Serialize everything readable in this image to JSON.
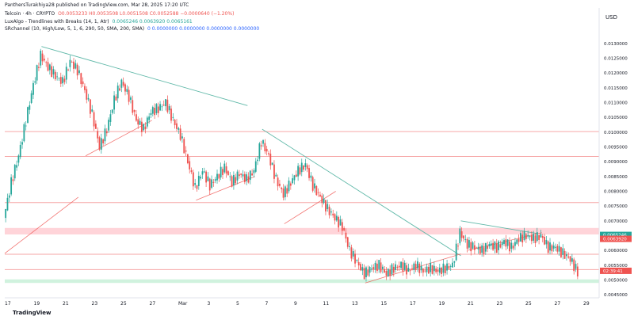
{
  "header": {
    "publisher": "PanthersTurakhiya28 published on TradingView.com, Mar 28, 2025 17:20 UTC",
    "symbol_line": "Telcoin · 4h · CRYPTO",
    "ohlc": "O0.0053233 H0.0053508 L0.0051508 C0.0052588 −0.0000640 (−1.20%)",
    "indicator1": "LuxAlgo - Trendlines with Breaks (14, 1, Atr)",
    "indicator1_values": "0.0065246 0.0063920 0.0065161",
    "indicator2": "SRchannel (10, High/Low, 5, 1, 6, 290, 50, SMA, 200, SMA)",
    "indicator2_values": "0 0.0000000 0.0000000 0.0000000 0.0000000"
  },
  "currency": "USD",
  "logo_text": "TradingView",
  "colors": {
    "up": "#26a69a",
    "down": "#ef5350",
    "zone_red": "#ffcdd2",
    "zone_green": "#c8f0d8",
    "sr_line": "#f6a6a6",
    "trendline": "#5fb8a8"
  },
  "chart_data": {
    "type": "candlestick",
    "symbol": "Telcoin",
    "timeframe": "4h",
    "ylim": [
      0.00445,
      0.0134
    ],
    "y_ticks": [
      "0.0130000",
      "0.0125000",
      "0.0120000",
      "0.0115000",
      "0.0110000",
      "0.0105000",
      "0.0100000",
      "0.0095000",
      "0.0090000",
      "0.0085000",
      "0.0080000",
      "0.0075000",
      "0.0070000",
      "0.0065000",
      "0.0060000",
      "0.0055000",
      "0.0050000",
      "0.0045000"
    ],
    "x_ticks": [
      "17",
      "19",
      "21",
      "23",
      "25",
      "27",
      "Mar",
      "3",
      "5",
      "7",
      "9",
      "11",
      "13",
      "15",
      "17",
      "19",
      "21",
      "23",
      "25",
      "27",
      "29"
    ],
    "price_labels": [
      {
        "text": "0.0065246",
        "value": 0.0065246,
        "color": "#26a69a"
      },
      {
        "text": "0.0063920",
        "value": 0.006392,
        "color": "#ef5350"
      },
      {
        "text": "02:39:41",
        "value": 0.00531,
        "color": "#ef5350"
      }
    ],
    "support_resistance_lines": [
      0.01002,
      0.00918,
      0.00762,
      0.00587,
      0.00535
    ],
    "zones": [
      {
        "from": 0.00654,
        "to": 0.00676,
        "color": "red"
      },
      {
        "from": 0.0049,
        "to": 0.00502,
        "color": "green"
      }
    ],
    "series": [
      {
        "name": "price",
        "points": [
          [
            0,
            0.0071
          ],
          [
            4,
            0.0083
          ],
          [
            8,
            0.0092
          ],
          [
            12,
            0.0104
          ],
          [
            16,
            0.0116
          ],
          [
            20,
            0.0126
          ],
          [
            24,
            0.0122
          ],
          [
            28,
            0.0119
          ],
          [
            32,
            0.0117
          ],
          [
            36,
            0.0124
          ],
          [
            40,
            0.0121
          ],
          [
            44,
            0.0114
          ],
          [
            48,
            0.0106
          ],
          [
            52,
            0.0095
          ],
          [
            56,
            0.0101
          ],
          [
            60,
            0.0111
          ],
          [
            64,
            0.0117
          ],
          [
            68,
            0.0112
          ],
          [
            72,
            0.0104
          ],
          [
            76,
            0.0101
          ],
          [
            80,
            0.0107
          ],
          [
            84,
            0.0108
          ],
          [
            88,
            0.011
          ],
          [
            92,
            0.0104
          ],
          [
            96,
            0.0099
          ],
          [
            100,
            0.009
          ],
          [
            104,
            0.0081
          ],
          [
            108,
            0.0087
          ],
          [
            112,
            0.0082
          ],
          [
            116,
            0.0085
          ],
          [
            120,
            0.0088
          ],
          [
            124,
            0.0083
          ],
          [
            128,
            0.0086
          ],
          [
            132,
            0.0084
          ],
          [
            136,
            0.0087
          ],
          [
            140,
            0.0097
          ],
          [
            144,
            0.0092
          ],
          [
            148,
            0.0084
          ],
          [
            152,
            0.0079
          ],
          [
            156,
            0.0083
          ],
          [
            160,
            0.0087
          ],
          [
            164,
            0.0089
          ],
          [
            168,
            0.0082
          ],
          [
            172,
            0.0078
          ],
          [
            176,
            0.0074
          ],
          [
            180,
            0.0071
          ],
          [
            184,
            0.0068
          ],
          [
            188,
            0.006
          ],
          [
            192,
            0.0056
          ],
          [
            196,
            0.0052
          ],
          [
            200,
            0.0054
          ],
          [
            204,
            0.0055
          ],
          [
            208,
            0.0052
          ],
          [
            212,
            0.0054
          ],
          [
            216,
            0.0055
          ],
          [
            220,
            0.0053
          ],
          [
            224,
            0.0055
          ],
          [
            228,
            0.0053
          ],
          [
            232,
            0.0054
          ],
          [
            236,
            0.0053
          ],
          [
            240,
            0.0054
          ],
          [
            244,
            0.0055
          ],
          [
            248,
            0.0066
          ],
          [
            252,
            0.0062
          ],
          [
            256,
            0.0061
          ],
          [
            260,
            0.006
          ],
          [
            264,
            0.0062
          ],
          [
            268,
            0.0061
          ],
          [
            272,
            0.0063
          ],
          [
            276,
            0.0061
          ],
          [
            280,
            0.0064
          ],
          [
            284,
            0.0065
          ],
          [
            288,
            0.0064
          ],
          [
            292,
            0.0065
          ],
          [
            296,
            0.0061
          ],
          [
            300,
            0.0061
          ],
          [
            304,
            0.0059
          ],
          [
            308,
            0.0057
          ],
          [
            312,
            0.00526
          ]
        ]
      }
    ]
  }
}
